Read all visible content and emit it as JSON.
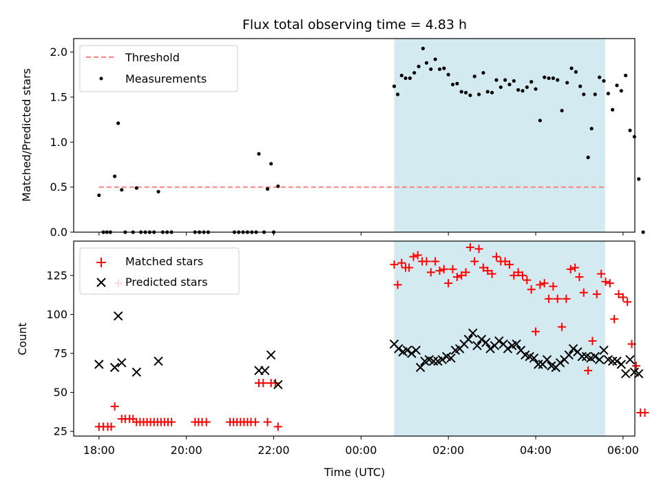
{
  "figure": {
    "title": "Flux total observing time = 4.83 h",
    "xlabel": "Time (UTC)",
    "x_ticks": [
      "18:00",
      "20:00",
      "22:00",
      "00:00",
      "02:00",
      "04:00",
      "06:00"
    ],
    "x_tick_hours": [
      0,
      2,
      4,
      6,
      8,
      10,
      12
    ],
    "xlim_hours": [
      -0.58,
      12.27
    ],
    "x_origin": "18:00",
    "shaded_span_hours": [
      6.76,
      11.59
    ],
    "shade_color": "#d2eaf0"
  },
  "chart_data": [
    {
      "type": "scatter",
      "ylabel": "Matched/Predicted stars",
      "ylim": [
        0,
        2.15
      ],
      "y_ticks": [
        "0.0",
        "0.5",
        "1.0",
        "1.5",
        "2.0"
      ],
      "y_tick_values": [
        0,
        0.5,
        1.0,
        1.5,
        2.0
      ],
      "legend_placement": "upper-left",
      "series": [
        {
          "name": "Threshold",
          "kind": "line",
          "style": "dashed",
          "color": "#ff7f7f",
          "x": [
            0.0,
            11.6
          ],
          "y": [
            0.5,
            0.5
          ]
        },
        {
          "name": "Measurements",
          "kind": "scatter",
          "marker": "dot",
          "color": "#000000",
          "points": [
            [
              0.0,
              0.41
            ],
            [
              0.1,
              0.0
            ],
            [
              0.18,
              0.0
            ],
            [
              0.26,
              0.0
            ],
            [
              0.36,
              0.62
            ],
            [
              0.44,
              1.21
            ],
            [
              0.52,
              0.47
            ],
            [
              0.6,
              0.0
            ],
            [
              0.78,
              0.0
            ],
            [
              0.86,
              0.49
            ],
            [
              0.96,
              0.0
            ],
            [
              1.06,
              0.0
            ],
            [
              1.16,
              0.0
            ],
            [
              1.26,
              0.0
            ],
            [
              1.36,
              0.45
            ],
            [
              1.46,
              0.0
            ],
            [
              1.56,
              0.0
            ],
            [
              1.66,
              0.0
            ],
            [
              2.2,
              0.0
            ],
            [
              2.3,
              0.0
            ],
            [
              2.4,
              0.0
            ],
            [
              2.5,
              0.0
            ],
            [
              3.1,
              0.0
            ],
            [
              3.2,
              0.0
            ],
            [
              3.3,
              0.0
            ],
            [
              3.4,
              0.0
            ],
            [
              3.5,
              0.0
            ],
            [
              3.6,
              0.0
            ],
            [
              3.66,
              0.87
            ],
            [
              3.78,
              0.0
            ],
            [
              3.86,
              0.48
            ],
            [
              3.94,
              0.76
            ],
            [
              4.0,
              0.0
            ],
            [
              4.1,
              0.51
            ],
            [
              6.76,
              1.62
            ],
            [
              6.84,
              1.53
            ],
            [
              6.93,
              1.74
            ],
            [
              7.02,
              1.71
            ],
            [
              7.12,
              1.71
            ],
            [
              7.22,
              1.77
            ],
            [
              7.32,
              1.84
            ],
            [
              7.42,
              2.04
            ],
            [
              7.5,
              1.88
            ],
            [
              7.6,
              1.81
            ],
            [
              7.7,
              1.92
            ],
            [
              7.8,
              1.81
            ],
            [
              7.9,
              1.82
            ],
            [
              8.0,
              1.75
            ],
            [
              8.1,
              1.64
            ],
            [
              8.2,
              1.65
            ],
            [
              8.3,
              1.56
            ],
            [
              8.4,
              1.55
            ],
            [
              8.5,
              1.52
            ],
            [
              8.6,
              1.73
            ],
            [
              8.7,
              1.53
            ],
            [
              8.8,
              1.77
            ],
            [
              8.9,
              1.56
            ],
            [
              9.0,
              1.55
            ],
            [
              9.1,
              1.69
            ],
            [
              9.2,
              1.61
            ],
            [
              9.3,
              1.69
            ],
            [
              9.4,
              1.64
            ],
            [
              9.5,
              1.68
            ],
            [
              9.6,
              1.58
            ],
            [
              9.7,
              1.57
            ],
            [
              9.8,
              1.61
            ],
            [
              9.9,
              1.67
            ],
            [
              10.0,
              1.59
            ],
            [
              10.1,
              1.24
            ],
            [
              10.2,
              1.72
            ],
            [
              10.3,
              1.71
            ],
            [
              10.4,
              1.71
            ],
            [
              10.5,
              1.69
            ],
            [
              10.6,
              1.35
            ],
            [
              10.72,
              1.66
            ],
            [
              10.82,
              1.82
            ],
            [
              10.92,
              1.78
            ],
            [
              11.02,
              1.62
            ],
            [
              11.1,
              1.53
            ],
            [
              11.2,
              0.83
            ],
            [
              11.28,
              1.15
            ],
            [
              11.36,
              1.53
            ],
            [
              11.46,
              1.72
            ],
            [
              11.56,
              1.68
            ],
            [
              11.66,
              1.54
            ],
            [
              11.76,
              1.36
            ],
            [
              11.86,
              1.63
            ],
            [
              11.96,
              1.57
            ],
            [
              12.06,
              1.74
            ],
            [
              12.16,
              1.13
            ],
            [
              12.26,
              1.06
            ],
            [
              12.36,
              0.59
            ],
            [
              12.46,
              0.0
            ]
          ]
        }
      ]
    },
    {
      "type": "scatter",
      "ylabel": "Count",
      "ylim": [
        22,
        147
      ],
      "y_ticks": [
        "25",
        "50",
        "75",
        "100",
        "125"
      ],
      "y_tick_values": [
        25,
        50,
        75,
        100,
        125
      ],
      "legend_placement": "upper-left",
      "series": [
        {
          "name": "Matched stars",
          "kind": "scatter",
          "marker": "plus",
          "color": "#ff0000",
          "points": [
            [
              0.0,
              28
            ],
            [
              0.1,
              28
            ],
            [
              0.2,
              28
            ],
            [
              0.28,
              28
            ],
            [
              0.36,
              41
            ],
            [
              0.44,
              120
            ],
            [
              0.52,
              33
            ],
            [
              0.6,
              33
            ],
            [
              0.7,
              33
            ],
            [
              0.78,
              33
            ],
            [
              0.86,
              31
            ],
            [
              0.94,
              31
            ],
            [
              1.02,
              31
            ],
            [
              1.1,
              31
            ],
            [
              1.18,
              31
            ],
            [
              1.26,
              31
            ],
            [
              1.34,
              31
            ],
            [
              1.42,
              31
            ],
            [
              1.5,
              31
            ],
            [
              1.58,
              31
            ],
            [
              1.66,
              31
            ],
            [
              2.2,
              31
            ],
            [
              2.28,
              31
            ],
            [
              2.36,
              31
            ],
            [
              2.46,
              31
            ],
            [
              3.0,
              31
            ],
            [
              3.08,
              31
            ],
            [
              3.16,
              31
            ],
            [
              3.24,
              31
            ],
            [
              3.32,
              31
            ],
            [
              3.4,
              31
            ],
            [
              3.48,
              31
            ],
            [
              3.58,
              31
            ],
            [
              3.66,
              56
            ],
            [
              3.76,
              56
            ],
            [
              3.86,
              31
            ],
            [
              3.94,
              56
            ],
            [
              4.04,
              56
            ],
            [
              4.1,
              28
            ],
            [
              6.76,
              132
            ],
            [
              6.84,
              119
            ],
            [
              6.93,
              133
            ],
            [
              7.02,
              130
            ],
            [
              7.1,
              130
            ],
            [
              7.2,
              137
            ],
            [
              7.3,
              138
            ],
            [
              7.4,
              134
            ],
            [
              7.5,
              134
            ],
            [
              7.6,
              127
            ],
            [
              7.7,
              134
            ],
            [
              7.8,
              128
            ],
            [
              7.9,
              129
            ],
            [
              8.0,
              120
            ],
            [
              8.1,
              129
            ],
            [
              8.2,
              124
            ],
            [
              8.3,
              125
            ],
            [
              8.4,
              127
            ],
            [
              8.5,
              143
            ],
            [
              8.6,
              134
            ],
            [
              8.7,
              142
            ],
            [
              8.8,
              130
            ],
            [
              8.9,
              128
            ],
            [
              9.0,
              126
            ],
            [
              9.1,
              137
            ],
            [
              9.2,
              134
            ],
            [
              9.3,
              134
            ],
            [
              9.4,
              132
            ],
            [
              9.5,
              125
            ],
            [
              9.6,
              127
            ],
            [
              9.7,
              125
            ],
            [
              9.8,
              122
            ],
            [
              9.9,
              116
            ],
            [
              10.0,
              89
            ],
            [
              10.1,
              119
            ],
            [
              10.2,
              120
            ],
            [
              10.3,
              110
            ],
            [
              10.4,
              118
            ],
            [
              10.5,
              110
            ],
            [
              10.6,
              92
            ],
            [
              10.7,
              110
            ],
            [
              10.8,
              129
            ],
            [
              10.9,
              130
            ],
            [
              11.0,
              124
            ],
            [
              11.1,
              114
            ],
            [
              11.2,
              64
            ],
            [
              11.3,
              83
            ],
            [
              11.4,
              113
            ],
            [
              11.5,
              126
            ],
            [
              11.6,
              121
            ],
            [
              11.7,
              120
            ],
            [
              11.8,
              97
            ],
            [
              11.9,
              113
            ],
            [
              12.0,
              111
            ],
            [
              12.1,
              108
            ],
            [
              12.2,
              81
            ],
            [
              12.3,
              67
            ],
            [
              12.4,
              37
            ],
            [
              12.5,
              37
            ]
          ]
        },
        {
          "name": "Predicted stars",
          "kind": "scatter",
          "marker": "cross",
          "color": "#000000",
          "points": [
            [
              0.0,
              68
            ],
            [
              0.36,
              66
            ],
            [
              0.44,
              99
            ],
            [
              0.52,
              69
            ],
            [
              0.86,
              63
            ],
            [
              1.36,
              70
            ],
            [
              3.66,
              64
            ],
            [
              3.8,
              64
            ],
            [
              3.94,
              74
            ],
            [
              4.1,
              55
            ],
            [
              6.76,
              81
            ],
            [
              6.86,
              78
            ],
            [
              6.96,
              76
            ],
            [
              7.06,
              77
            ],
            [
              7.16,
              75
            ],
            [
              7.26,
              77
            ],
            [
              7.36,
              66
            ],
            [
              7.46,
              70
            ],
            [
              7.56,
              71
            ],
            [
              7.66,
              70
            ],
            [
              7.76,
              70
            ],
            [
              7.86,
              71
            ],
            [
              7.96,
              73
            ],
            [
              8.06,
              72
            ],
            [
              8.16,
              77
            ],
            [
              8.26,
              78
            ],
            [
              8.36,
              81
            ],
            [
              8.46,
              84
            ],
            [
              8.56,
              88
            ],
            [
              8.66,
              80
            ],
            [
              8.76,
              84
            ],
            [
              8.86,
              82
            ],
            [
              8.96,
              78
            ],
            [
              9.06,
              80
            ],
            [
              9.16,
              83
            ],
            [
              9.26,
              81
            ],
            [
              9.36,
              78
            ],
            [
              9.46,
              80
            ],
            [
              9.56,
              81
            ],
            [
              9.66,
              77
            ],
            [
              9.76,
              74
            ],
            [
              9.86,
              73
            ],
            [
              9.96,
              72
            ],
            [
              10.06,
              68
            ],
            [
              10.16,
              68
            ],
            [
              10.26,
              71
            ],
            [
              10.36,
              67
            ],
            [
              10.46,
              66
            ],
            [
              10.56,
              69
            ],
            [
              10.66,
              71
            ],
            [
              10.76,
              74
            ],
            [
              10.86,
              78
            ],
            [
              10.96,
              76
            ],
            [
              11.06,
              73
            ],
            [
              11.16,
              73
            ],
            [
              11.26,
              72
            ],
            [
              11.36,
              73
            ],
            [
              11.46,
              71
            ],
            [
              11.56,
              77
            ],
            [
              11.66,
              71
            ],
            [
              11.76,
              70
            ],
            [
              11.86,
              70
            ],
            [
              11.96,
              68
            ],
            [
              12.06,
              62
            ],
            [
              12.16,
              71
            ],
            [
              12.26,
              63
            ],
            [
              12.36,
              62
            ]
          ]
        }
      ]
    }
  ]
}
